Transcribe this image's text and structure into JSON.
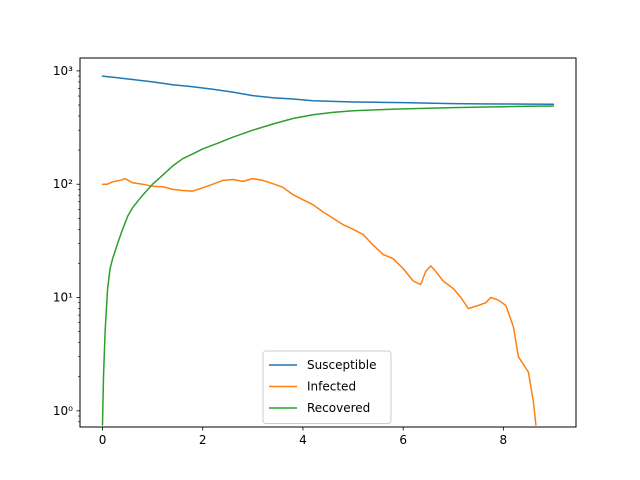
{
  "chart_data": {
    "type": "line",
    "title": "",
    "xlabel": "",
    "ylabel": "",
    "yscale": "log",
    "xlim": [
      -0.45,
      9.45
    ],
    "ylim": [
      0.72,
      1300
    ],
    "x_ticks": [
      0,
      2,
      4,
      6,
      8
    ],
    "x_tick_labels": [
      "0",
      "2",
      "4",
      "6",
      "8"
    ],
    "y_ticks": [
      1,
      10,
      100,
      1000
    ],
    "y_tick_labels": [
      "10⁰",
      "10¹",
      "10²",
      "10³"
    ],
    "grid": false,
    "legend_position": "lower-center",
    "series": [
      {
        "name": "Susceptible",
        "color": "#1f77b4",
        "x": [
          0,
          0.3,
          0.6,
          1.0,
          1.4,
          1.8,
          2.2,
          2.6,
          3.0,
          3.4,
          3.8,
          4.2,
          4.6,
          5.0,
          5.5,
          6.0,
          6.5,
          7.0,
          7.5,
          8.0,
          8.5,
          9.0
        ],
        "y": [
          900,
          870,
          840,
          800,
          755,
          725,
          690,
          650,
          605,
          580,
          565,
          545,
          538,
          532,
          528,
          525,
          520,
          515,
          512,
          510,
          509,
          508
        ]
      },
      {
        "name": "Infected",
        "color": "#ff7f0e",
        "x": [
          0,
          0.1,
          0.2,
          0.35,
          0.45,
          0.6,
          0.8,
          1.0,
          1.2,
          1.4,
          1.6,
          1.8,
          2.0,
          2.2,
          2.4,
          2.6,
          2.8,
          3.0,
          3.2,
          3.4,
          3.6,
          3.8,
          4.0,
          4.2,
          4.4,
          4.6,
          4.8,
          5.0,
          5.2,
          5.4,
          5.6,
          5.8,
          6.0,
          6.2,
          6.35,
          6.45,
          6.55,
          6.65,
          6.8,
          7.0,
          7.15,
          7.3,
          7.5,
          7.65,
          7.75,
          7.9,
          8.05,
          8.2,
          8.3,
          8.5,
          8.6,
          8.65
        ],
        "y": [
          100,
          100,
          105,
          108,
          112,
          103,
          100,
          96,
          95,
          90,
          88,
          87,
          93,
          100,
          108,
          110,
          106,
          112,
          108,
          101,
          94,
          81,
          73,
          66,
          57,
          50,
          44,
          40,
          36,
          29,
          24,
          22,
          18,
          14,
          13,
          17,
          19,
          17,
          14,
          12,
          10,
          8,
          8.5,
          9,
          10,
          9.5,
          8.5,
          5.5,
          3,
          2.2,
          1.2,
          0.75
        ]
      },
      {
        "name": "Recovered",
        "color": "#2ca02c",
        "x": [
          0,
          0.02,
          0.05,
          0.1,
          0.15,
          0.2,
          0.3,
          0.4,
          0.5,
          0.6,
          0.8,
          1.0,
          1.2,
          1.4,
          1.6,
          1.8,
          2.0,
          2.3,
          2.6,
          3.0,
          3.4,
          3.8,
          4.2,
          4.6,
          5.0,
          5.5,
          6.0,
          6.5,
          7.0,
          7.5,
          8.0,
          8.5,
          9.0
        ],
        "y": [
          0.75,
          2,
          5,
          12,
          18,
          22,
          30,
          40,
          52,
          62,
          80,
          100,
          120,
          145,
          168,
          185,
          205,
          230,
          260,
          300,
          340,
          380,
          410,
          430,
          445,
          455,
          462,
          468,
          474,
          479,
          483,
          487,
          490
        ]
      }
    ]
  }
}
